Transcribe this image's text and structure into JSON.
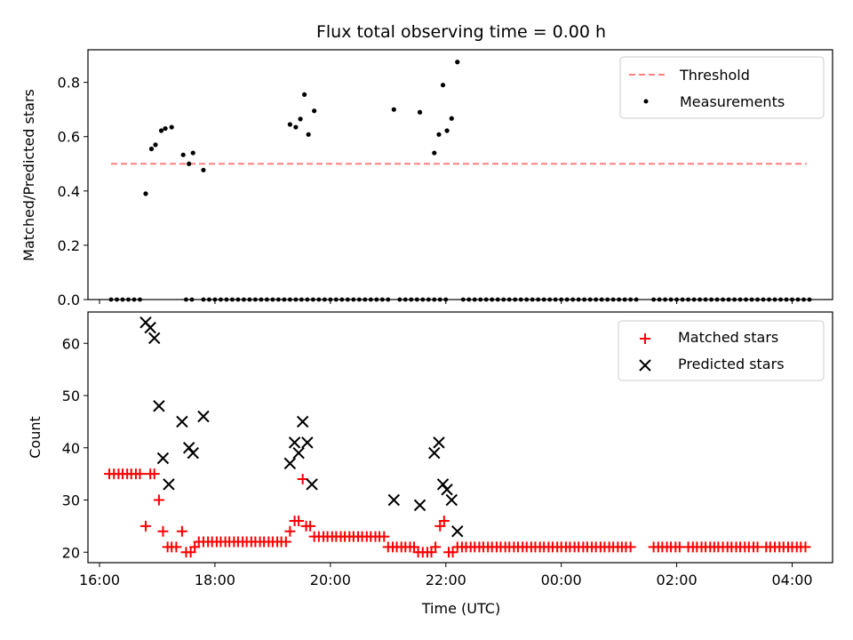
{
  "title": "Flux total observing time = 0.00 h",
  "colors": {
    "threshold": "#ff7f7f",
    "measure": "#000000",
    "matched": "#ff0000",
    "predicted": "#000000"
  },
  "chart_data": [
    {
      "type": "scatter",
      "ylabel": "Matched/Predicted stars",
      "ylim": [
        0,
        0.92
      ],
      "yticks": [
        "0.0",
        "0.2",
        "0.4",
        "0.6",
        "0.8"
      ],
      "xrange_hours": [
        15.8,
        28.7
      ],
      "legend": [
        "Threshold",
        "Measurements"
      ],
      "legend_placement": "upper right",
      "threshold": {
        "y": 0.5,
        "x_start_h": 16.2,
        "x_end_h": 28.25
      },
      "measurements": {
        "x": [
          16.8,
          16.9,
          16.97,
          17.07,
          17.14,
          17.25,
          17.45,
          17.55,
          17.62,
          17.8,
          19.3,
          19.4,
          19.48,
          19.55,
          19.62,
          19.72,
          21.1,
          21.55,
          21.8,
          21.88,
          21.95,
          22.02,
          22.1,
          22.2
        ],
        "y": [
          0.39,
          0.555,
          0.57,
          0.622,
          0.63,
          0.635,
          0.533,
          0.5,
          0.54,
          0.477,
          0.645,
          0.635,
          0.665,
          0.755,
          0.608,
          0.695,
          0.7,
          0.69,
          0.54,
          0.608,
          0.79,
          0.622,
          0.667,
          0.875
        ]
      },
      "zero_points_x": [
        16.2,
        16.3,
        16.4,
        16.5,
        16.6,
        16.7,
        17.5,
        17.6,
        17.8,
        17.9,
        18.0,
        18.1,
        18.2,
        18.3,
        18.4,
        18.5,
        18.6,
        18.7,
        18.8,
        18.9,
        19.0,
        19.1,
        19.2,
        19.3,
        19.4,
        19.5,
        19.6,
        19.7,
        19.8,
        19.9,
        20.0,
        20.1,
        20.2,
        20.3,
        20.4,
        20.5,
        20.6,
        20.7,
        20.8,
        20.9,
        21.0,
        21.2,
        21.3,
        21.4,
        21.5,
        21.6,
        21.7,
        21.8,
        21.9,
        22.0,
        22.3,
        22.4,
        22.5,
        22.6,
        22.7,
        22.8,
        22.9,
        23.0,
        23.1,
        23.2,
        23.3,
        23.4,
        23.5,
        23.6,
        23.7,
        23.8,
        23.9,
        24.0,
        24.1,
        24.2,
        24.3,
        24.4,
        24.5,
        24.6,
        24.7,
        24.8,
        24.9,
        25.0,
        25.1,
        25.2,
        25.3,
        25.6,
        25.7,
        25.8,
        25.9,
        26.0,
        26.1,
        26.2,
        26.3,
        26.4,
        26.5,
        26.6,
        26.7,
        26.8,
        26.9,
        27.0,
        27.1,
        27.2,
        27.3,
        27.4,
        27.5,
        27.6,
        27.7,
        27.8,
        27.9,
        28.0,
        28.1,
        28.2,
        28.3
      ]
    },
    {
      "type": "scatter",
      "xlabel": "Time (UTC)",
      "ylabel": "Count",
      "ylim": [
        18,
        66
      ],
      "yticks": [
        "20",
        "30",
        "40",
        "50",
        "60"
      ],
      "xticks_h": [
        16,
        18,
        20,
        22,
        24,
        26,
        28
      ],
      "xtick_labels": [
        "16:00",
        "18:00",
        "20:00",
        "22:00",
        "00:00",
        "02:00",
        "04:00"
      ],
      "legend": [
        "Matched stars",
        "Predicted stars"
      ],
      "legend_placement": "upper right",
      "series": [
        {
          "name": "Matched stars",
          "marker": "+",
          "x": [
            16.17,
            16.25,
            16.33,
            16.4,
            16.48,
            16.55,
            16.63,
            16.7,
            16.8,
            16.88,
            16.95,
            17.03,
            17.1,
            17.18,
            17.25,
            17.33,
            17.43,
            17.5,
            17.58,
            17.65,
            17.72,
            17.8,
            17.88,
            17.95,
            18.03,
            18.1,
            18.18,
            18.25,
            18.33,
            18.4,
            18.48,
            18.55,
            18.63,
            18.7,
            18.78,
            18.85,
            18.93,
            19.0,
            19.08,
            19.15,
            19.23,
            19.3,
            19.38,
            19.45,
            19.52,
            19.58,
            19.65,
            19.72,
            19.8,
            19.88,
            19.95,
            20.03,
            20.1,
            20.18,
            20.25,
            20.33,
            20.4,
            20.48,
            20.55,
            20.63,
            20.7,
            20.78,
            20.85,
            20.93,
            21.0,
            21.08,
            21.15,
            21.23,
            21.3,
            21.38,
            21.45,
            21.52,
            21.6,
            21.68,
            21.75,
            21.82,
            21.9,
            21.97,
            22.05,
            22.12,
            22.2,
            22.28,
            22.35,
            22.43,
            22.5,
            22.58,
            22.65,
            22.73,
            22.8,
            22.88,
            22.95,
            23.03,
            23.1,
            23.18,
            23.25,
            23.33,
            23.4,
            23.48,
            23.55,
            23.63,
            23.7,
            23.78,
            23.85,
            23.93,
            24.0,
            24.08,
            24.15,
            24.23,
            24.3,
            24.38,
            24.45,
            24.53,
            24.6,
            24.68,
            24.75,
            24.83,
            24.9,
            24.98,
            25.05,
            25.12,
            25.2,
            25.6,
            25.68,
            25.75,
            25.83,
            25.9,
            25.98,
            26.05,
            26.2,
            26.28,
            26.35,
            26.43,
            26.5,
            26.58,
            26.65,
            26.72,
            26.8,
            26.88,
            26.95,
            27.03,
            27.1,
            27.18,
            27.25,
            27.33,
            27.4,
            27.55,
            27.62,
            27.7,
            27.78,
            27.85,
            27.93,
            28.0,
            28.08,
            28.15,
            28.23
          ],
          "y": [
            35,
            35,
            35,
            35,
            35,
            35,
            35,
            35,
            25,
            35,
            35,
            30,
            24,
            21,
            21,
            21,
            24,
            20,
            20,
            21,
            22,
            22,
            22,
            22,
            22,
            22,
            22,
            22,
            22,
            22,
            22,
            22,
            22,
            22,
            22,
            22,
            22,
            22,
            22,
            22,
            22,
            24,
            26,
            26,
            34,
            25,
            25,
            23,
            23,
            23,
            23,
            23,
            23,
            23,
            23,
            23,
            23,
            23,
            23,
            23,
            23,
            23,
            23,
            23,
            21,
            21,
            21,
            21,
            21,
            21,
            21,
            20,
            20,
            20,
            20,
            21,
            25,
            26,
            20,
            20,
            21,
            21,
            21,
            21,
            21,
            21,
            21,
            21,
            21,
            21,
            21,
            21,
            21,
            21,
            21,
            21,
            21,
            21,
            21,
            21,
            21,
            21,
            21,
            21,
            21,
            21,
            21,
            21,
            21,
            21,
            21,
            21,
            21,
            21,
            21,
            21,
            21,
            21,
            21,
            21,
            21,
            21,
            21,
            21,
            21,
            21,
            21,
            21,
            21,
            21,
            21,
            21,
            21,
            21,
            21,
            21,
            21,
            21,
            21,
            21,
            21,
            21,
            21,
            21,
            21,
            21,
            21,
            21,
            21,
            21,
            21,
            21,
            21,
            21,
            21
          ]
        },
        {
          "name": "Predicted stars",
          "marker": "x",
          "x": [
            16.8,
            16.88,
            16.95,
            17.03,
            17.1,
            17.2,
            17.43,
            17.55,
            17.62,
            17.8,
            19.3,
            19.38,
            19.45,
            19.52,
            19.6,
            19.68,
            21.1,
            21.55,
            21.8,
            21.88,
            21.95,
            22.02,
            22.1,
            22.2
          ],
          "y": [
            64,
            63,
            61,
            48,
            38,
            33,
            45,
            40,
            39,
            46,
            37,
            41,
            39,
            45,
            41,
            33,
            30,
            29,
            39,
            41,
            33,
            32,
            30,
            24
          ]
        }
      ]
    }
  ]
}
